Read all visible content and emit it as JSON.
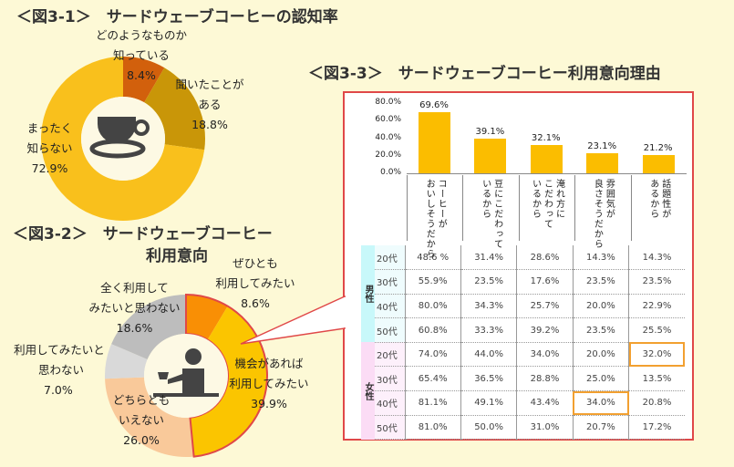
{
  "fig1": {
    "title": "＜図3-1＞　サードウェーブコーヒーの認知率"
  },
  "fig2": {
    "title_line1": "＜図3-2＞　サードウェーブコーヒー",
    "title_line2": "利用意向"
  },
  "fig3": {
    "title": "＜図3-3＞　サードウェーブコーヒー利用意向理由"
  },
  "colors": {
    "background": "#fdf9d6",
    "highlight_border": "#e04848",
    "bar": "#fbbd00",
    "male": "#c8f8fa",
    "female": "#fbdcf5",
    "cell_highlight": "#f2a030"
  },
  "icons": {
    "fig1_center": "coffee-cup-icon",
    "fig2_center": "person-drinking-icon"
  },
  "chart_data": [
    {
      "type": "pie",
      "variant": "donut",
      "title": "＜図3-1＞　サードウェーブコーヒーの認知率",
      "slices": [
        {
          "label_line1": "どのようなものか",
          "label_line2": "知っている",
          "value": 8.4,
          "value_label": "8.4%",
          "color": "#d2600c"
        },
        {
          "label_line1": "聞いたことが",
          "label_line2": "ある",
          "value": 18.8,
          "value_label": "18.8%",
          "color": "#c99608"
        },
        {
          "label_line1": "まったく",
          "label_line2": "知らない",
          "value": 72.9,
          "value_label": "72.9%",
          "color": "#f9c01c"
        }
      ]
    },
    {
      "type": "pie",
      "variant": "donut",
      "title": "＜図3-2＞　サードウェーブコーヒー 利用意向",
      "slices": [
        {
          "label_line1": "ぜひとも",
          "label_line2": "利用してみたい",
          "value": 8.6,
          "value_label": "8.6%",
          "color": "#f98f05",
          "highlighted": true
        },
        {
          "label_line1": "機会があれば",
          "label_line2": "利用してみたい",
          "value": 39.9,
          "value_label": "39.9%",
          "color": "#fbc500",
          "highlighted": true
        },
        {
          "label_line1": "どちらとも",
          "label_line2": "いえない",
          "value": 26.0,
          "value_label": "26.0%",
          "color": "#f9c99a"
        },
        {
          "label_line1": "利用してみたいと",
          "label_line2": "思わない",
          "value": 7.0,
          "value_label": "7.0%",
          "color": "#d9d9d9"
        },
        {
          "label_line1": "全く利用して",
          "label_line2": "みたいと思わない",
          "value": 18.6,
          "value_label": "18.6%",
          "color": "#bdbdbd"
        }
      ]
    },
    {
      "type": "bar",
      "title": "＜図3-3＞　サードウェーブコーヒー利用意向理由",
      "categories": [
        "コーヒーが\nおいしそうだから",
        "豆にこだわって\nいるから",
        "淹れ方に\nこだわって\nいるから",
        "雰囲気が\n良さそうだから",
        "話題性が\nあるから"
      ],
      "values": [
        69.6,
        39.1,
        32.1,
        23.1,
        21.2
      ],
      "value_labels": [
        "69.6%",
        "39.1%",
        "32.1%",
        "23.1%",
        "21.2%"
      ],
      "yticks": [
        "80.0%",
        "60.0%",
        "40.0%",
        "20.0%",
        "0.0%"
      ],
      "ylim": [
        0,
        80
      ],
      "table": {
        "groups": [
          {
            "name": "男性",
            "rows": [
              {
                "age": "20代",
                "values": [
                  "48.6 %",
                  "31.4%",
                  "28.6%",
                  "14.3%",
                  "14.3%"
                ]
              },
              {
                "age": "30代",
                "values": [
                  "55.9%",
                  "23.5%",
                  "17.6%",
                  "23.5%",
                  "23.5%"
                ]
              },
              {
                "age": "40代",
                "values": [
                  "80.0%",
                  "34.3%",
                  "25.7%",
                  "20.0%",
                  "22.9%"
                ]
              },
              {
                "age": "50代",
                "values": [
                  "60.8%",
                  "33.3%",
                  "39.2%",
                  "23.5%",
                  "25.5%"
                ]
              }
            ]
          },
          {
            "name": "女性",
            "rows": [
              {
                "age": "20代",
                "values": [
                  "74.0%",
                  "44.0%",
                  "34.0%",
                  "20.0%",
                  "32.0%"
                ],
                "highlight": [
                  4
                ]
              },
              {
                "age": "30代",
                "values": [
                  "65.4%",
                  "36.5%",
                  "28.8%",
                  "25.0%",
                  "13.5%"
                ]
              },
              {
                "age": "40代",
                "values": [
                  "81.1%",
                  "49.1%",
                  "43.4%",
                  "34.0%",
                  "20.8%"
                ],
                "highlight": [
                  3
                ]
              },
              {
                "age": "50代",
                "values": [
                  "81.0%",
                  "50.0%",
                  "31.0%",
                  "20.7%",
                  "17.2%"
                ]
              }
            ]
          }
        ]
      }
    }
  ]
}
